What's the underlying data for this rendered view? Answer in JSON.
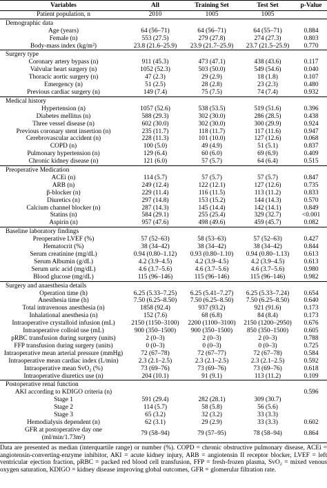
{
  "table": {
    "header": [
      "Variables",
      "All",
      "Training Set",
      "Test Set",
      "p-Value"
    ],
    "population": {
      "label": "Patient population, n",
      "all": "2010",
      "train": "1005",
      "test": "1005"
    },
    "sections": [
      {
        "title": "Demographic data",
        "rows": [
          {
            "label": "Age (years)",
            "all": "64 (56–71)",
            "train": "64 (56–71)",
            "test": "64 (55–71)",
            "p": "0.884"
          },
          {
            "label": "Female (n)",
            "all": "553 (27.5)",
            "train": "279 (27.8)",
            "test": "274 (27.3)",
            "p": "0.803"
          },
          {
            "label": "Body-mass index (kg/m²)",
            "all": "23.8 (21.6–25.9)",
            "train": "23.9 (21.7–25.9)",
            "test": "23.7 (21.5–25.9)",
            "p": "0.770"
          }
        ]
      },
      {
        "title": "Surgery type",
        "rows": [
          {
            "label": "Coronary artery bypass (n)",
            "all": "911 (45.3)",
            "train": "473 (47.1)",
            "test": "438 (43.6)",
            "p": "0.117"
          },
          {
            "label": "Valvular heart surgery (n)",
            "all": "1052 (52.3)",
            "train": "503 (50.0)",
            "test": "549 (54.6)",
            "p": "0.040"
          },
          {
            "label": "Thoracic aortic surgery (n)",
            "all": "47 (2.3)",
            "train": "29 (2.9)",
            "test": "18 (1.8)",
            "p": "0.107"
          },
          {
            "label": "Emergency (n)",
            "all": "51 (2.5)",
            "train": "28 (2.8)",
            "test": "23 (2.3)",
            "p": "0.480"
          },
          {
            "label": "Previous cardiac surgery (n)",
            "all": "149 (7.4)",
            "train": "75 (7.5)",
            "test": "74 (7.4)",
            "p": "0.932"
          }
        ]
      },
      {
        "title": "Medical history",
        "rows": [
          {
            "label": "Hypertension (n)",
            "all": "1057 (52.6)",
            "train": "538 (53.5)",
            "test": "519 (51.6)",
            "p": "0.396"
          },
          {
            "label": "Diabetes mellitus (n)",
            "all": "588 (29.3)",
            "train": "302 (30.0)",
            "test": "286 (28.5)",
            "p": "0.438"
          },
          {
            "label": "Three vessel disease (n)",
            "all": "602 (30.0)",
            "train": "302 (30.0)",
            "test": "300 (29.9)",
            "p": "0.924"
          },
          {
            "label": "Previous coronary stent insertion (n)",
            "all": "235 (11.7)",
            "train": "118 (11.7)",
            "test": "117 (11.6)",
            "p": "0.947"
          },
          {
            "label": "Cerebrovascular accident (n)",
            "all": "228 (11.3)",
            "train": "101 (10.0)",
            "test": "127 (12.6)",
            "p": "0.068"
          },
          {
            "label": "COPD (n)",
            "all": "100 (5.0)",
            "train": "49 (4.9)",
            "test": "51 (5.1)",
            "p": "0.837"
          },
          {
            "label": "Pulmonary hypertension (n)",
            "all": "129 (6.4)",
            "train": "60 (6.0)",
            "test": "69 (6.9)",
            "p": "0.409"
          },
          {
            "label": "Chronic kidney disease (n)",
            "all": "121 (6.0)",
            "train": "57 (5.7)",
            "test": "64 (6.4)",
            "p": "0.515"
          }
        ]
      },
      {
        "title": "Preoperative Medication",
        "rows": [
          {
            "label": "ACEi (n)",
            "all": "114 (5.7)",
            "train": "57 (5.7)",
            "test": "57 (5.7)",
            "p": "0.847"
          },
          {
            "label": "ARB (n)",
            "all": "249 (12.4)",
            "train": "122 (12.1)",
            "test": "127 (12.6)",
            "p": "0.735"
          },
          {
            "label": "β-blocker (n)",
            "all": "229 (11.4)",
            "train": "116 (11.5)",
            "test": "113 (11.2)",
            "p": "0.833"
          },
          {
            "label": "Diuretics (n)",
            "all": "297 (14.8)",
            "train": "153 (15.2)",
            "test": "144 (14.3)",
            "p": "0.570"
          },
          {
            "label": "Calcium channel blocker (n)",
            "all": "287 (14.3)",
            "train": "145 (14.4)",
            "test": "142 (14.1)",
            "p": "0.849"
          },
          {
            "label": "Statins (n)",
            "all": "584 (29.1)",
            "train": "255 (25.4)",
            "test": "329 (32.7)",
            "p": "<0.001"
          },
          {
            "label": "Aspirin (n)",
            "all": "957 (47.6)",
            "train": "498 (49.6)",
            "test": "459 (45.7)",
            "p": "0.082"
          }
        ]
      },
      {
        "title": "Baseline laboratory findings",
        "rows": [
          {
            "label": "Preoperative LVEF (%)",
            "all": "57 (52–63)",
            "train": "58 (53–63)",
            "test": "57 (52–63)",
            "p": "0.427"
          },
          {
            "label": "Hematocrit (%)",
            "all": "38 (34–42)",
            "train": "38 (34–42)",
            "test": "38 (34–42)",
            "p": "0.844"
          },
          {
            "label": "Serum creatinine (mg/dL)",
            "all": "0.94 (0.80–1.12)",
            "train": "0.93 (0.80–1.10)",
            "test": "0.94 (0.80–1.13)",
            "p": "0.613"
          },
          {
            "label": "Serum Albumin (g/dL)",
            "all": "4.2 (3.9–4.5)",
            "train": "4.2 (3.9–4.5)",
            "test": "4.2 (3.9–4.5)",
            "p": "0.613"
          },
          {
            "label": "Serum uric acid (mg/dL)",
            "all": "4.6 (3.7–5.6)",
            "train": "4.6 (3.7–5.6)",
            "test": "4.6 (3.7–5.6)",
            "p": "0.980"
          },
          {
            "label": "Blood glucose (mg/dL)",
            "all": "115 (96–146)",
            "train": "115 (96–146)",
            "test": "115 (96–146)",
            "p": "0.982"
          }
        ]
      },
      {
        "title": "Surgery and anaesthesia details",
        "rows": [
          {
            "label": "Operation time (h)",
            "all": "6.25 (5.33–7.25)",
            "train": "6.25 (5.41–7.27)",
            "test": "6.25 (5.33–7.24)",
            "p": "0.654"
          },
          {
            "label": "Anesthesia time (h)",
            "all": "7.50 (6.25–8.50)",
            "train": "7.50 (6.25–8.50)",
            "test": "7.50 (6.25–8.50)",
            "p": "0.640"
          },
          {
            "label": "Total intravenous anesthesia (n)",
            "all": "1858 (92.4)",
            "train": "937 (93.2)",
            "test": "921 (91.6)",
            "p": "0.173"
          },
          {
            "label": "Inhalational anesthesia (n)",
            "all": "152 (7.6)",
            "train": "68 (6.8)",
            "test": "84 (8.4)",
            "p": "0.173"
          },
          {
            "label": "Intraoperative crystalloid infusion (mL)",
            "all": "2150 (1150–3100)",
            "train": "2200 (1100–3100)",
            "test": "2150 (1200–2950)",
            "p": "0.676"
          },
          {
            "label": "Intraoperative colloid use (mL)",
            "all": "900 (350–1500)",
            "train": "900 (350–1500)",
            "test": "850 (350–1500)",
            "p": "0.605"
          },
          {
            "label": "pRBC transfusion during surgery (units)",
            "all": "2 (0–3)",
            "train": "2 (0–3)",
            "test": "2 (0–3)",
            "p": "0.788"
          },
          {
            "label": "FFP transfusion during surgery (units)",
            "all": "0 (0–3)",
            "train": "0 (0–3)",
            "test": "0 (0–3)",
            "p": "0.725"
          },
          {
            "label": "Intraoperative mean arterial pressure (mmHg)",
            "all": "72 (67–78)",
            "train": "72 (67–77)",
            "test": "72 (67–78)",
            "p": "0.584"
          },
          {
            "label": "Intraoperative mean cardiac index (L/min)",
            "all": "2.3 (2.1–2.5)",
            "train": "2.3 (2.1–2.5)",
            "test": "2.3 (2.1–2.5)",
            "p": "0.592"
          },
          {
            "label": "Intraoperative mean SvO₂ (%)",
            "all": "73 (69–76)",
            "train": "73 (69–76)",
            "test": "73 (69–76)",
            "p": "0.618"
          },
          {
            "label": "Intraoperative diuretics use (n)",
            "all": "204 (10.1)",
            "train": "91 (9.1)",
            "test": "113 (11.2)",
            "p": "0.109"
          }
        ]
      },
      {
        "title": "Postoperative renal function",
        "rows": [
          {
            "label": "AKI according to KDIGO criteria (n)",
            "p": "0.596"
          },
          {
            "label": "Stage 1",
            "all": "591 (29.4)",
            "train": "282 (28.1)",
            "test": "309 (30.7)"
          },
          {
            "label": "Stage 2",
            "all": "114 (5.7)",
            "train": "58 (5.8)",
            "test": "56 (5.6)"
          },
          {
            "label": "Stage 3",
            "all": "65 (3.2)",
            "train": "32 (3.2)",
            "test": "33 (3.3)"
          },
          {
            "label": "Hemodialysis dependent (n)",
            "all": "62 (3.1)",
            "train": "29 (2.9)",
            "test": "33 (3.3)",
            "p": "0.602"
          },
          {
            "label": [
              "GFR at postoperative day one",
              "(ml/min/1.73m²)"
            ],
            "all": "79 (58–94)",
            "train": "79 (57–95)",
            "test": "78 (58–94)",
            "p": "0.864"
          }
        ]
      }
    ]
  },
  "footnote": "Data are presented as median (interquartile range) or number (%). COPD = chronic obstructive pulmonary disease, ACEi = angiotensin-converting-enzyme inhibitor, AKI = acute kidney injury, ARB = angiotensin II receptor blocker, LVEF = left ventricular ejection fraction, pRBC = packed red blood cell transfusion, FFP = fresh-frozen plasma, SvO₂ = mixed venous oxygen saturation, KDIGO = kidney disease improving global outcomes, GFR = glomerular filtration rate."
}
